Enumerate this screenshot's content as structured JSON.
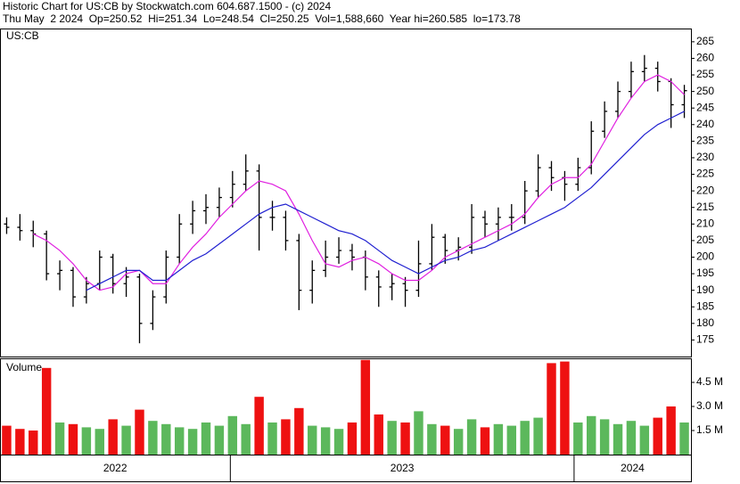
{
  "chart_data": {
    "type": "ohlc",
    "title": "Historic Chart for US:CB by Stockwatch.com 604.687.1500 - (c) 2024",
    "subtitle": "Thu May  2 2024  Op=250.52  Hi=251.34  Lo=248.54  Cl=250.25  Vol=1,588,660  Year hi=260.585  lo=173.78",
    "symbol": "US:CB",
    "volume_label": "Volume",
    "xlim": [
      2022.33,
      2024.34
    ],
    "xticks": [
      2023,
      2024
    ],
    "x_labels": [
      "2022",
      "2023",
      "2024"
    ],
    "ylim": [
      170,
      269
    ],
    "yticks": [
      175,
      180,
      185,
      190,
      195,
      200,
      205,
      210,
      215,
      220,
      225,
      230,
      235,
      240,
      245,
      250,
      255,
      260,
      265
    ],
    "bar_color": "#000000",
    "open": [
      210,
      209,
      208,
      207,
      195,
      196,
      188,
      192,
      200,
      192,
      194,
      180,
      188,
      200,
      210,
      214,
      215,
      218,
      222,
      226,
      212,
      212,
      205,
      190,
      196,
      200,
      202,
      200,
      194,
      191,
      192,
      190,
      198,
      206,
      202,
      203,
      212,
      210,
      212,
      212,
      220,
      227,
      224,
      222,
      227,
      238,
      244,
      250,
      256,
      257,
      253,
      246
    ],
    "high": [
      212,
      213,
      211,
      208,
      199,
      197,
      194,
      202,
      201,
      197,
      195,
      190,
      202,
      213,
      217,
      219,
      221,
      226,
      231,
      228,
      217,
      214,
      207,
      199,
      205,
      206,
      204,
      202,
      196,
      195,
      194,
      205,
      210,
      207,
      206,
      216,
      214,
      215,
      216,
      223,
      231,
      229,
      226,
      230,
      241,
      247,
      253,
      259,
      261,
      259,
      254,
      252
    ],
    "low": [
      207,
      205,
      203,
      193,
      190,
      185,
      186,
      190,
      189,
      188,
      174,
      178,
      186,
      198,
      207,
      210,
      212,
      215,
      220,
      202,
      208,
      202,
      184,
      186,
      194,
      198,
      196,
      190,
      185,
      187,
      185,
      188,
      196,
      198,
      199,
      201,
      206,
      205,
      208,
      210,
      218,
      220,
      217,
      220,
      225,
      236,
      242,
      248,
      253,
      250,
      239,
      242
    ],
    "close": [
      209,
      208,
      207,
      195,
      196,
      188,
      192,
      200,
      192,
      194,
      180,
      188,
      200,
      210,
      214,
      215,
      218,
      222,
      226,
      212,
      212,
      205,
      190,
      196,
      200,
      202,
      200,
      194,
      191,
      192,
      190,
      198,
      206,
      202,
      203,
      212,
      210,
      212,
      212,
      220,
      227,
      224,
      222,
      227,
      238,
      244,
      250,
      256,
      257,
      253,
      246,
      250.25
    ],
    "series": [
      {
        "color": "#e020e0",
        "values": [
          null,
          null,
          207,
          205,
          202,
          198,
          193,
          190,
          191,
          195,
          196,
          192,
          192,
          198,
          203,
          207,
          212,
          216,
          220,
          223,
          222,
          220,
          213,
          205,
          198,
          197,
          199,
          200,
          198,
          195,
          193,
          193,
          196,
          200,
          202,
          204,
          206,
          208,
          210,
          213,
          218,
          222,
          224,
          224,
          228,
          235,
          242,
          248,
          253,
          255,
          253,
          249
        ]
      },
      {
        "color": "#2020d0",
        "values": [
          null,
          null,
          null,
          null,
          null,
          null,
          190,
          192,
          194,
          196,
          196,
          193,
          193,
          196,
          199,
          201,
          204,
          207,
          210,
          213,
          215,
          216,
          214,
          212,
          210,
          208,
          207,
          205,
          202,
          199,
          197,
          195,
          197,
          199,
          200,
          202,
          203,
          205,
          207,
          209,
          211,
          213,
          215,
          218,
          221,
          225,
          229,
          233,
          237,
          240,
          242,
          244
        ]
      }
    ],
    "volume": {
      "ylim": [
        0,
        6
      ],
      "yticks": [
        {
          "value": 1.5,
          "label": "1.5 M"
        },
        {
          "value": 3.0,
          "label": "3.0 M"
        },
        {
          "value": 4.5,
          "label": "4.5 M"
        }
      ],
      "up_color": "#5cb85c",
      "down_color": "#ee1111",
      "values": [
        1.8,
        1.6,
        1.5,
        5.4,
        2.0,
        1.9,
        1.7,
        1.6,
        2.2,
        1.8,
        2.8,
        2.1,
        1.9,
        1.7,
        1.6,
        2.0,
        1.8,
        2.4,
        1.9,
        3.6,
        2.0,
        2.2,
        2.9,
        1.8,
        1.7,
        1.6,
        2.0,
        5.9,
        2.5,
        2.1,
        2.0,
        2.7,
        1.9,
        1.8,
        1.6,
        2.2,
        1.7,
        1.9,
        1.8,
        2.1,
        2.3,
        5.7,
        5.8,
        2.0,
        2.4,
        2.2,
        1.9,
        2.1,
        1.8,
        2.3,
        3.0,
        2.0
      ]
    }
  }
}
